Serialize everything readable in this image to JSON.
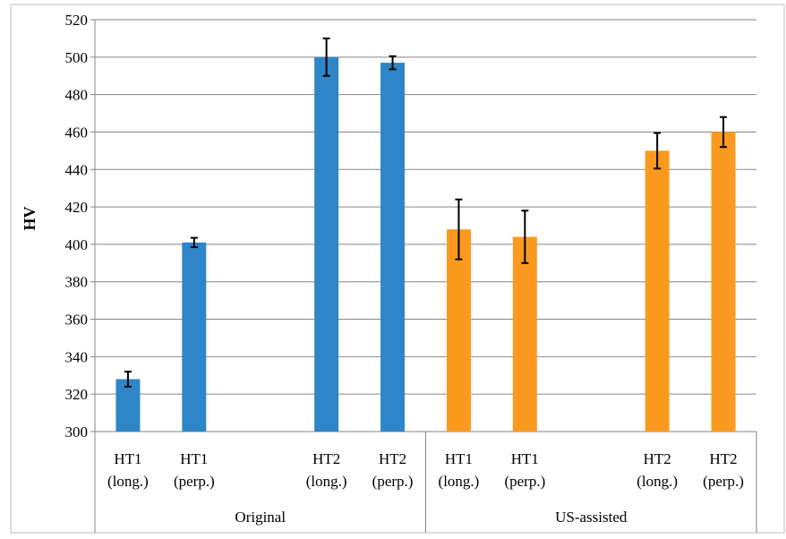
{
  "chart_data": {
    "type": "bar",
    "title": "",
    "ylabel": "HV",
    "xlabel": "",
    "ylim": [
      300,
      520
    ],
    "ytick_step": 20,
    "grid": true,
    "legend": "none",
    "groups": [
      {
        "label": "Original",
        "color": "#2e86c8",
        "bars": [
          {
            "label_line1": "HT1",
            "label_line2": "(long.)",
            "value": 328,
            "error": 4
          },
          {
            "label_line1": "HT1",
            "label_line2": "(perp.)",
            "value": 401,
            "error": 2.5
          },
          {
            "label_line1": "HT2",
            "label_line2": "(long.)",
            "value": 500,
            "error": 10
          },
          {
            "label_line1": "HT2",
            "label_line2": "(perp.)",
            "value": 497,
            "error": 3.5
          }
        ]
      },
      {
        "label": "US-assisted",
        "color": "#fb9a1e",
        "bars": [
          {
            "label_line1": "HT1",
            "label_line2": "(long.)",
            "value": 408,
            "error": 16
          },
          {
            "label_line1": "HT1",
            "label_line2": "(perp.)",
            "value": 404,
            "error": 14
          },
          {
            "label_line1": "HT2",
            "label_line2": "(long.)",
            "value": 450,
            "error": 9.5
          },
          {
            "label_line1": "HT2",
            "label_line2": "(perp.)",
            "value": 460,
            "error": 8
          }
        ]
      }
    ]
  }
}
